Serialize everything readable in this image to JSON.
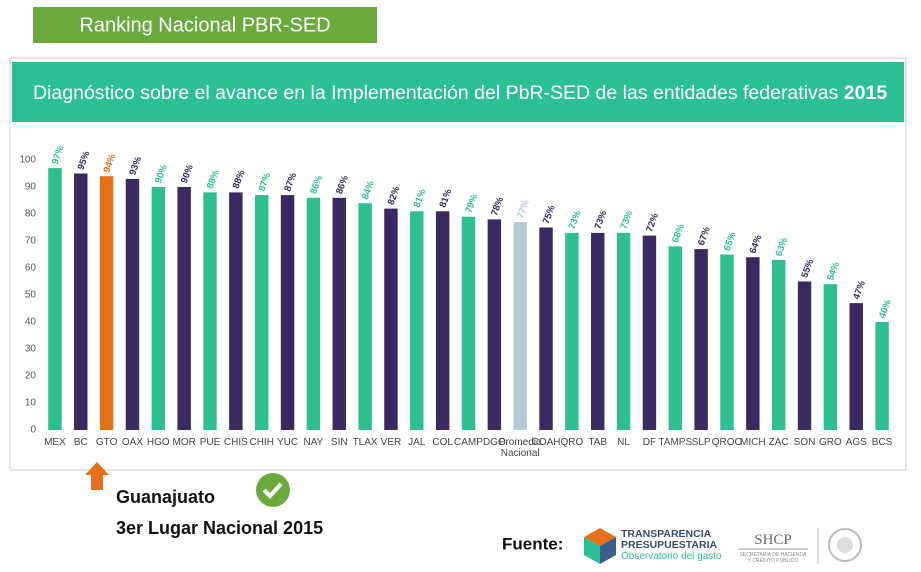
{
  "slide_title": "Ranking Nacional PBR-SED",
  "chart_data": {
    "type": "bar",
    "title": "Diagnóstico sobre el avance en la Implementación del PbR-SED de las entidades federativas",
    "title_emphasis": "2015",
    "categories": [
      "MEX",
      "BC",
      "GTO",
      "OAX",
      "HGO",
      "MOR",
      "PUE",
      "CHIS",
      "CHIH",
      "YUC",
      "NAY",
      "SIN",
      "TLAX",
      "VER",
      "JAL",
      "COL",
      "CAMP",
      "DGO",
      "Promedio Nacional",
      "COAH",
      "QRO",
      "TAB",
      "NL",
      "DF",
      "TAMPS",
      "SLP",
      "QROO",
      "MICH",
      "ZAC",
      "SON",
      "GRO",
      "AGS",
      "BCS"
    ],
    "values": [
      97,
      95,
      94,
      93,
      90,
      90,
      88,
      88,
      87,
      87,
      86,
      86,
      84,
      82,
      81,
      81,
      79,
      78,
      77,
      75,
      73,
      73,
      73,
      72,
      68,
      67,
      65,
      64,
      63,
      55,
      54,
      47,
      40
    ],
    "value_labels": [
      "97%",
      "95%",
      "94%",
      "93%",
      "90%",
      "90%",
      "88%",
      "88%",
      "87%",
      "87%",
      "86%",
      "86%",
      "84%",
      "82%",
      "81%",
      "81%",
      "79%",
      "78%",
      "77%",
      "75%",
      "73%",
      "73%",
      "73%",
      "72%",
      "68%",
      "67%",
      "65%",
      "64%",
      "63%",
      "55%",
      "54%",
      "47%",
      "40%"
    ],
    "colors": [
      "#2fbf8c",
      "#3b2a62",
      "#e5701a",
      "#3b2a62",
      "#2fbf8c",
      "#3b2a62",
      "#2fbf8c",
      "#3b2a62",
      "#2fbf8c",
      "#3b2a62",
      "#2fbf8c",
      "#3b2a62",
      "#2fbf8c",
      "#3b2a62",
      "#2fbf8c",
      "#3b2a62",
      "#2fbf8c",
      "#3b2a62",
      "#b5cbd4",
      "#3b2a62",
      "#2fbf8c",
      "#3b2a62",
      "#2fbf8c",
      "#3b2a62",
      "#2fbf8c",
      "#3b2a62",
      "#2fbf8c",
      "#3b2a62",
      "#2fbf8c",
      "#3b2a62",
      "#2fbf8c",
      "#3b2a62",
      "#2fbf8c"
    ],
    "ylim": [
      0,
      100
    ],
    "yticks": [
      0,
      10,
      20,
      30,
      40,
      50,
      60,
      70,
      80,
      90,
      100
    ],
    "grid": false
  },
  "callout": {
    "lines": [
      "Guanajuato",
      "3er Lugar Nacional 2015"
    ]
  },
  "source": {
    "label": "Fuente:",
    "transparencia": [
      "TRANSPARENCIA",
      "PRESUPUESTARIA",
      "Observatorio del gasto"
    ],
    "shcp": [
      "SHCP",
      "SECRETARÍA DE HACIENDA",
      "Y CRÉDITO PÚBLICO"
    ]
  }
}
